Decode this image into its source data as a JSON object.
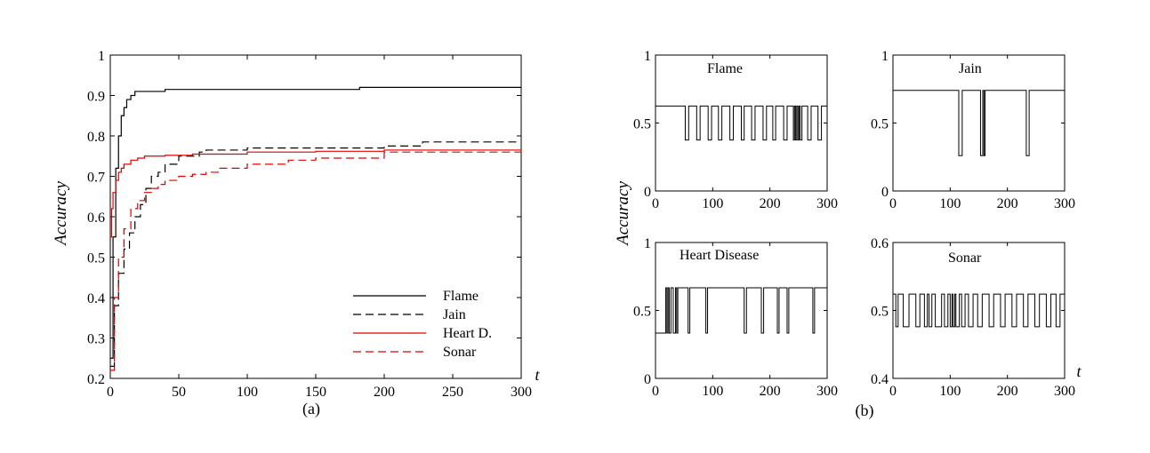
{
  "chart_data": [
    {
      "id": "a",
      "type": "line",
      "caption": "(a)",
      "xlabel": "t",
      "ylabel": "Accuracy",
      "xlim": [
        0,
        300
      ],
      "ylim": [
        0.2,
        1
      ],
      "xticks": [
        "0",
        "50",
        "100",
        "150",
        "200",
        "250",
        "300"
      ],
      "yticks": [
        "0.2",
        "0.3",
        "0.4",
        "0.5",
        "0.6",
        "0.7",
        "0.8",
        "0.9",
        "1"
      ],
      "legend_position": "bottom-right",
      "series": [
        {
          "name": "Flame",
          "color": "#000000",
          "dash": "solid",
          "x": [
            0,
            2,
            4,
            6,
            8,
            10,
            12,
            15,
            18,
            20,
            40,
            100,
            180,
            182,
            300
          ],
          "y": [
            0.25,
            0.55,
            0.72,
            0.8,
            0.85,
            0.87,
            0.89,
            0.9,
            0.91,
            0.91,
            0.915,
            0.915,
            0.915,
            0.92,
            0.92
          ]
        },
        {
          "name": "Jain",
          "color": "#000000",
          "dash": "dashed",
          "x": [
            0,
            3,
            6,
            10,
            14,
            18,
            22,
            26,
            30,
            35,
            40,
            50,
            60,
            65,
            70,
            100,
            150,
            200,
            225,
            228,
            300
          ],
          "y": [
            0.23,
            0.38,
            0.46,
            0.52,
            0.56,
            0.6,
            0.63,
            0.67,
            0.7,
            0.71,
            0.73,
            0.75,
            0.75,
            0.76,
            0.765,
            0.77,
            0.77,
            0.775,
            0.775,
            0.785,
            0.785
          ]
        },
        {
          "name": "Heart D.",
          "color": "#e00000",
          "dash": "solid",
          "x": [
            0,
            1,
            2,
            4,
            6,
            8,
            10,
            15,
            20,
            25,
            30,
            40,
            60,
            100,
            150,
            200,
            300
          ],
          "y": [
            0.55,
            0.62,
            0.66,
            0.69,
            0.71,
            0.72,
            0.73,
            0.74,
            0.745,
            0.75,
            0.75,
            0.752,
            0.755,
            0.76,
            0.762,
            0.765,
            0.765
          ]
        },
        {
          "name": "Sonar",
          "color": "#e00000",
          "dash": "dashed",
          "x": [
            0,
            3,
            6,
            10,
            15,
            20,
            25,
            30,
            35,
            40,
            50,
            60,
            70,
            80,
            100,
            130,
            150,
            190,
            200,
            300
          ],
          "y": [
            0.22,
            0.4,
            0.5,
            0.57,
            0.62,
            0.64,
            0.66,
            0.67,
            0.68,
            0.69,
            0.7,
            0.705,
            0.71,
            0.72,
            0.73,
            0.74,
            0.745,
            0.745,
            0.76,
            0.765
          ]
        }
      ]
    },
    {
      "id": "b-flame",
      "type": "line",
      "title": "Flame",
      "xlim": [
        0,
        300
      ],
      "ylim": [
        0,
        1
      ],
      "xticks": [
        "0",
        "100",
        "200",
        "300"
      ],
      "yticks": [
        "0",
        "0.5",
        "1"
      ],
      "high": 0.625,
      "low": 0.375,
      "start_value": 0.625,
      "dips": [
        [
          52,
          58
        ],
        [
          72,
          78
        ],
        [
          92,
          98
        ],
        [
          110,
          116
        ],
        [
          130,
          136
        ],
        [
          150,
          155
        ],
        [
          168,
          174
        ],
        [
          188,
          194
        ],
        [
          205,
          210
        ],
        [
          224,
          230
        ],
        [
          241,
          243
        ],
        [
          245,
          247
        ],
        [
          249,
          251
        ],
        [
          253,
          256
        ],
        [
          266,
          272
        ],
        [
          284,
          290
        ]
      ]
    },
    {
      "id": "b-jain",
      "type": "line",
      "title": "Jain",
      "xlim": [
        0,
        300
      ],
      "ylim": [
        0,
        1
      ],
      "xticks": [
        "0",
        "100",
        "200",
        "300"
      ],
      "yticks": [
        "0",
        "0.5",
        "1"
      ],
      "high": 0.74,
      "low": 0.26,
      "start_value": 0.74,
      "dips": [
        [
          115,
          121
        ],
        [
          153,
          157
        ],
        [
          159,
          161
        ],
        [
          233,
          238
        ]
      ]
    },
    {
      "id": "b-heart",
      "type": "line",
      "title": "Heart Disease",
      "xlim": [
        0,
        300
      ],
      "ylim": [
        0,
        1
      ],
      "xticks": [
        "0",
        "100",
        "200",
        "300"
      ],
      "yticks": [
        "0",
        "0.5",
        "1"
      ],
      "high": 0.667,
      "low": 0.333,
      "start_value": 0.333,
      "ups": [
        [
          18,
          20
        ],
        [
          22,
          24
        ],
        [
          27,
          31
        ],
        [
          35,
          300
        ]
      ],
      "dips": [
        [
          37,
          39
        ],
        [
          57,
          60
        ],
        [
          88,
          91
        ],
        [
          155,
          159
        ],
        [
          185,
          189
        ],
        [
          213,
          216
        ],
        [
          230,
          233
        ],
        [
          275,
          278
        ]
      ]
    },
    {
      "id": "b-sonar",
      "type": "line",
      "title": "Sonar",
      "xlim": [
        0,
        300
      ],
      "ylim": [
        0.4,
        0.6
      ],
      "xticks": [
        "0",
        "100",
        "200",
        "300"
      ],
      "yticks": [
        "0.4",
        "0.5",
        "0.6"
      ],
      "high": 0.524,
      "low": 0.476,
      "start_value": 0.524,
      "dips": [
        [
          5,
          9
        ],
        [
          18,
          28
        ],
        [
          40,
          47
        ],
        [
          55,
          60
        ],
        [
          63,
          68
        ],
        [
          74,
          85
        ],
        [
          90,
          96
        ],
        [
          100,
          103
        ],
        [
          105,
          108
        ],
        [
          110,
          116
        ],
        [
          120,
          126
        ],
        [
          132,
          140
        ],
        [
          148,
          156
        ],
        [
          168,
          176
        ],
        [
          188,
          196
        ],
        [
          208,
          216
        ],
        [
          228,
          236
        ],
        [
          248,
          256
        ],
        [
          268,
          276
        ],
        [
          285,
          292
        ]
      ]
    }
  ],
  "panel_b_ylabel": "Accuracy",
  "panel_b_xlabel": "t",
  "panel_b_caption": "(b)"
}
